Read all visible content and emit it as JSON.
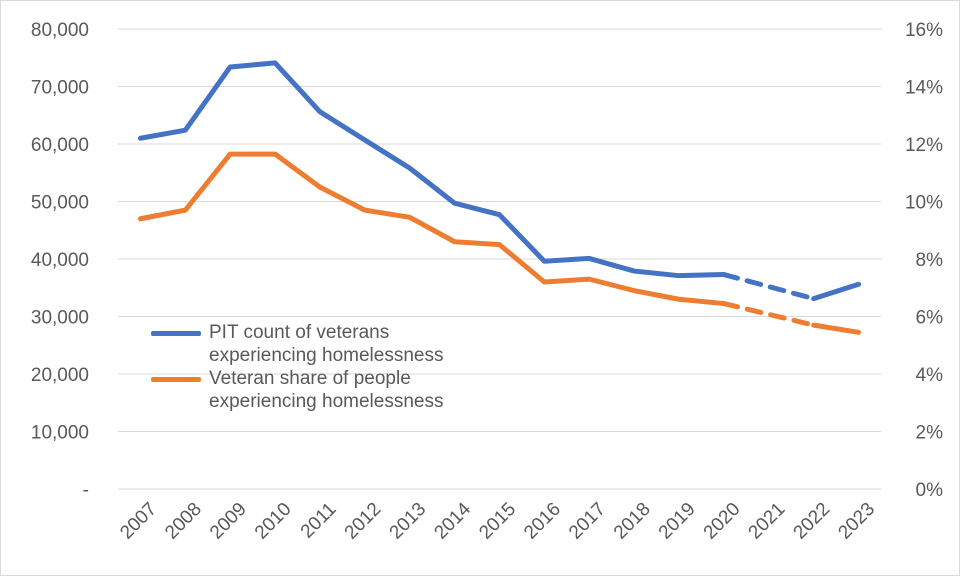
{
  "chart_data": {
    "type": "line",
    "title": "",
    "x": [
      "2007",
      "2008",
      "2009",
      "2010",
      "2011",
      "2012",
      "2013",
      "2014",
      "2015",
      "2016",
      "2017",
      "2018",
      "2019",
      "2020",
      "2021",
      "2022",
      "2023"
    ],
    "y_left": {
      "ylim": [
        0,
        80000
      ],
      "ticks": [
        "-",
        "10,000",
        "20,000",
        "30,000",
        "40,000",
        "50,000",
        "60,000",
        "70,000",
        "80,000"
      ]
    },
    "y_right": {
      "ylim": [
        0,
        16
      ],
      "ticks": [
        "0%",
        "2%",
        "4%",
        "6%",
        "8%",
        "10%",
        "12%",
        "14%",
        "16%"
      ]
    },
    "grid": true,
    "legend_position": "left-middle",
    "series": [
      {
        "name": "PIT count of veterans experiencing homelessness",
        "axis": "left",
        "color": "#4472C4",
        "values": [
          61000,
          62400,
          73400,
          74100,
          65600,
          60700,
          55800,
          49700,
          47700,
          39600,
          40100,
          37900,
          37100,
          37300,
          null,
          33100,
          35600
        ],
        "dashed_segment": [
          "2020",
          "2022"
        ]
      },
      {
        "name": "Veteran share of people experiencing homelessness",
        "axis": "right",
        "color": "#ED7D31",
        "values": [
          9.4,
          9.7,
          11.65,
          11.65,
          10.5,
          9.7,
          9.45,
          8.6,
          8.5,
          7.2,
          7.3,
          6.9,
          6.6,
          6.45,
          null,
          5.7,
          5.45
        ],
        "dashed_segment": [
          "2020",
          "2022"
        ]
      }
    ]
  }
}
